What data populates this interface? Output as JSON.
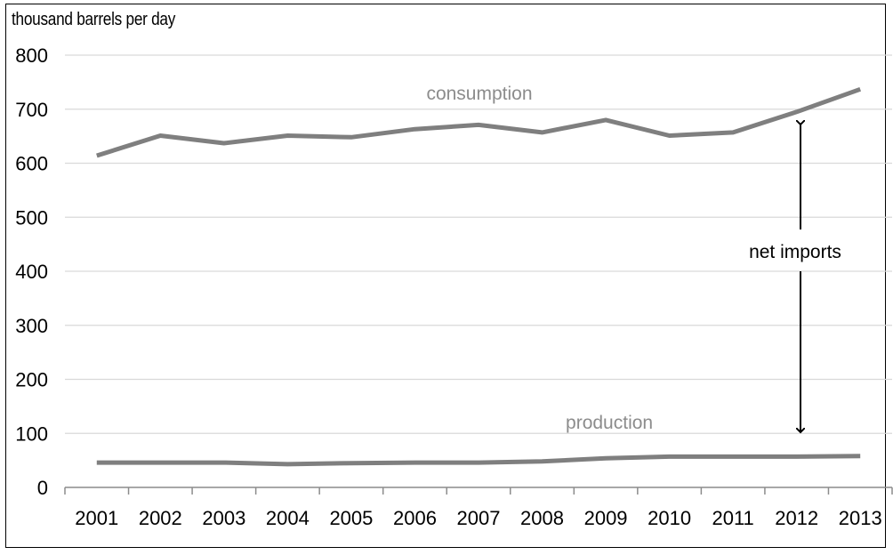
{
  "chart_data": {
    "type": "line",
    "ylabel": "thousand barrels per day",
    "ylim": [
      0,
      800
    ],
    "yticks": [
      "0",
      "100",
      "200",
      "300",
      "400",
      "500",
      "600",
      "700",
      "800"
    ],
    "grid": "horizontal",
    "categories": [
      "2001",
      "2002",
      "2003",
      "2004",
      "2005",
      "2006",
      "2007",
      "2008",
      "2009",
      "2010",
      "2011",
      "2012",
      "2013"
    ],
    "series": [
      {
        "name": "consumption",
        "color": "#7f7f7f",
        "values": [
          614,
          651,
          637,
          651,
          648,
          663,
          671,
          657,
          680,
          651,
          657,
          695,
          737
        ]
      },
      {
        "name": "production",
        "color": "#7f7f7f",
        "values": [
          46,
          46,
          46,
          43,
          45,
          46,
          46,
          48,
          54,
          57,
          57,
          57,
          58
        ]
      }
    ],
    "annotations": {
      "consumption": "consumption",
      "production": "production",
      "net_imports": "net imports"
    }
  }
}
